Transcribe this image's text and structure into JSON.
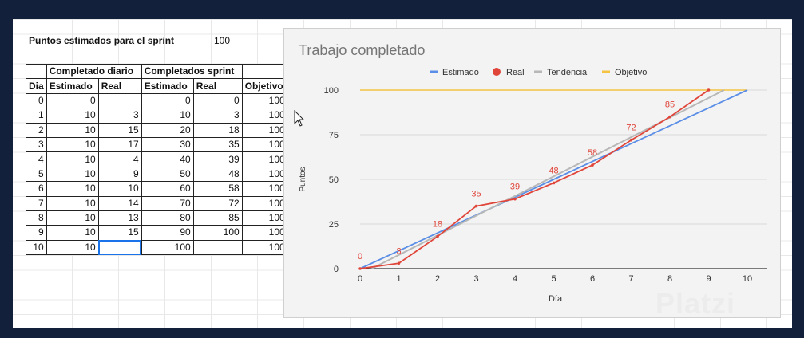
{
  "sheet": {
    "points_label": "Puntos estimados para el sprint",
    "points_value": "100",
    "table": {
      "group_headers": [
        "Completado diario",
        "Completados sprint"
      ],
      "columns": [
        "Dia",
        "Estimado",
        "Real",
        "Estimado",
        "Real",
        "Objetivo"
      ],
      "rows": [
        [
          "0",
          "0",
          "",
          "0",
          "0",
          "100"
        ],
        [
          "1",
          "10",
          "3",
          "10",
          "3",
          "100"
        ],
        [
          "2",
          "10",
          "15",
          "20",
          "18",
          "100"
        ],
        [
          "3",
          "10",
          "17",
          "30",
          "35",
          "100"
        ],
        [
          "4",
          "10",
          "4",
          "40",
          "39",
          "100"
        ],
        [
          "5",
          "10",
          "9",
          "50",
          "48",
          "100"
        ],
        [
          "6",
          "10",
          "10",
          "60",
          "58",
          "100"
        ],
        [
          "7",
          "10",
          "14",
          "70",
          "72",
          "100"
        ],
        [
          "8",
          "10",
          "13",
          "80",
          "85",
          "100"
        ],
        [
          "9",
          "10",
          "15",
          "90",
          "100",
          "100"
        ],
        [
          "10",
          "10",
          "",
          "100",
          "",
          "100"
        ]
      ]
    }
  },
  "chart_data": {
    "type": "line",
    "title": "Trabajo completado",
    "xlabel": "Día",
    "ylabel": "Puntos",
    "x": [
      0,
      1,
      2,
      3,
      4,
      5,
      6,
      7,
      8,
      9,
      10
    ],
    "xlim": [
      0,
      10
    ],
    "ylim": [
      0,
      100
    ],
    "yticks": [
      0,
      25,
      50,
      75,
      100
    ],
    "grid": true,
    "legend": "top-center",
    "series": [
      {
        "name": "Estimado",
        "color": "#5b8ee6",
        "values": [
          0,
          10,
          20,
          30,
          40,
          50,
          60,
          70,
          80,
          90,
          100
        ]
      },
      {
        "name": "Real",
        "color": "#e0453a",
        "values": [
          0,
          3,
          18,
          35,
          39,
          48,
          58,
          72,
          85,
          100,
          null
        ],
        "data_labels": true
      },
      {
        "name": "Tendencia",
        "color": "#b7b7b7",
        "trend": {
          "x0": 0.3,
          "x1": 9.4,
          "y0": 0,
          "y1": 100
        }
      },
      {
        "name": "Objetivo",
        "color": "#f5c342",
        "values": [
          100,
          100,
          100,
          100,
          100,
          100,
          100,
          100,
          100,
          100,
          100
        ]
      }
    ]
  },
  "watermark": "Platzi"
}
